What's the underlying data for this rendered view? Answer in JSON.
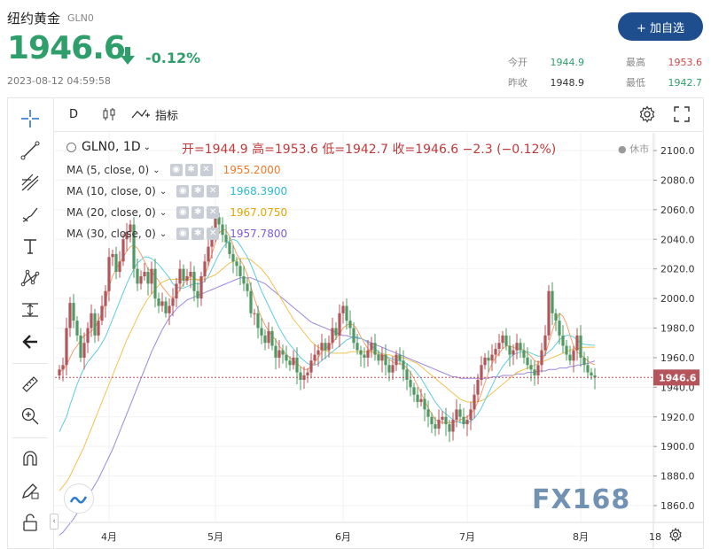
{
  "header": {
    "title": "纽约黄金",
    "code": "GLN0",
    "price": "1946.6",
    "change": "-0.12%",
    "timestamp": "2023-08-12 04:59:58",
    "add_button": "+ 加自选",
    "stats": [
      {
        "label": "今开",
        "value": "1944.9",
        "color": "#2e9e6b"
      },
      {
        "label": "最高",
        "value": "1953.6",
        "color": "#d04a4a"
      },
      {
        "label": "昨收",
        "value": "1948.9",
        "color": "#333333"
      },
      {
        "label": "最低",
        "value": "1942.7",
        "color": "#2e9e6b"
      }
    ]
  },
  "toolbar": {
    "interval": "D",
    "indicators": "指标"
  },
  "legend": {
    "symbol": "GLN0, 1D",
    "ohlc": "开=1944.9  高=1953.6  低=1942.7  收=1946.6  −2.3 (−0.12%)",
    "closed": "● 休市",
    "ma": [
      {
        "label": "MA (5, close, 0)",
        "value": "1955.2000",
        "color": "#f07a2a"
      },
      {
        "label": "MA (10, close, 0)",
        "value": "1968.3900",
        "color": "#2ebad3"
      },
      {
        "label": "MA (20, close, 0)",
        "value": "1967.0750",
        "color": "#f2c14e"
      },
      {
        "label": "MA (30, close, 0)",
        "value": "1957.7800",
        "color": "#7b5bd6"
      }
    ]
  },
  "watermark": "FX168",
  "chart_data": {
    "type": "candlestick",
    "ylim": [
      1850,
      2105
    ],
    "yticks": [
      1860,
      1880,
      1900,
      1920,
      1940,
      1960,
      1980,
      2000,
      2020,
      2040,
      2060,
      2080,
      2100
    ],
    "xticks": [
      {
        "label": "4月",
        "index": 14
      },
      {
        "label": "5月",
        "index": 44
      },
      {
        "label": "6月",
        "index": 80
      },
      {
        "label": "7月",
        "index": 115
      },
      {
        "label": "8月",
        "index": 147
      },
      {
        "label": "18",
        "index": 168
      }
    ],
    "last_price": 1946.6,
    "closes": [
      1952,
      1955,
      1980,
      1997,
      1985,
      1975,
      1960,
      1970,
      1980,
      1990,
      1975,
      1985,
      1995,
      2005,
      2028,
      2030,
      2018,
      2025,
      2040,
      2045,
      2050,
      2020,
      2010,
      2015,
      2018,
      2010,
      2020,
      2000,
      1995,
      1998,
      1990,
      1995,
      2000,
      2010,
      2020,
      2012,
      2015,
      2018,
      2005,
      2000,
      2015,
      2025,
      2035,
      2045,
      2055,
      2050,
      2043,
      2038,
      2030,
      2025,
      2022,
      2015,
      2010,
      2005,
      1990,
      1990,
      1980,
      1975,
      1970,
      1978,
      1968,
      1960,
      1965,
      1962,
      1958,
      1955,
      1960,
      1950,
      1945,
      1948,
      1950,
      1958,
      1962,
      1965,
      1970,
      1965,
      1970,
      1980,
      1975,
      1990,
      1995,
      1985,
      1980,
      1970,
      1965,
      1962,
      1960,
      1965,
      1970,
      1962,
      1958,
      1962,
      1955,
      1950,
      1955,
      1962,
      1958,
      1952,
      1945,
      1940,
      1935,
      1930,
      1932,
      1925,
      1920,
      1915,
      1912,
      1918,
      1920,
      1915,
      1910,
      1918,
      1925,
      1920,
      1915,
      1918,
      1925,
      1935,
      1945,
      1955,
      1960,
      1958,
      1962,
      1966,
      1970,
      1975,
      1968,
      1962,
      1965,
      1970,
      1965,
      1960,
      1955,
      1952,
      1948,
      1955,
      1965,
      1975,
      2005,
      1990,
      1985,
      1975,
      1968,
      1962,
      1958,
      1965,
      1975,
      1960,
      1955,
      1950,
      1948,
      1946.6
    ],
    "ma5": [
      1950,
      1952,
      1955,
      1960,
      1965,
      1968,
      1972,
      1975,
      1976,
      1978,
      1980,
      1985,
      1990,
      1998,
      2008,
      2015,
      2020,
      2024,
      2028,
      2032,
      2035,
      2036,
      2034,
      2030,
      2025,
      2020,
      2018,
      2015,
      2012,
      2008,
      2005,
      2002,
      2000,
      2002,
      2006,
      2010,
      2013,
      2015,
      2014,
      2012,
      2013,
      2016,
      2022,
      2030,
      2038,
      2044,
      2047,
      2046,
      2042,
      2036,
      2030,
      2026,
      2022,
      2016,
      2008,
      2000,
      1993,
      1987,
      1982,
      1978,
      1975,
      1972,
      1968,
      1965,
      1962,
      1960,
      1958,
      1956,
      1954,
      1952,
      1952,
      1954,
      1957,
      1960,
      1964,
      1966,
      1968,
      1970,
      1973,
      1976,
      1980,
      1982,
      1983,
      1982,
      1979,
      1974,
      1970,
      1966,
      1964,
      1963,
      1962,
      1962,
      1961,
      1959,
      1957,
      1956,
      1956,
      1955,
      1953,
      1950,
      1946,
      1941,
      1936,
      1931,
      1926,
      1922,
      1918,
      1917,
      1916,
      1916,
      1916,
      1916,
      1917,
      1918,
      1919,
      1920,
      1922,
      1925,
      1930,
      1936,
      1943,
      1950,
      1956,
      1960,
      1963,
      1966,
      1968,
      1968,
      1967,
      1966,
      1966,
      1965,
      1963,
      1961,
      1958,
      1957,
      1958,
      1962,
      1970,
      1978,
      1985,
      1990,
      1988,
      1983,
      1975,
      1968,
      1964,
      1962,
      1960,
      1958,
      1956,
      1955.2
    ],
    "ma10": [
      1910,
      1915,
      1920,
      1928,
      1935,
      1942,
      1948,
      1953,
      1957,
      1960,
      1963,
      1966,
      1970,
      1974,
      1980,
      1986,
      1992,
      1998,
      2004,
      2010,
      2015,
      2020,
      2024,
      2026,
      2028,
      2028,
      2027,
      2025,
      2023,
      2020,
      2017,
      2014,
      2010,
      2008,
      2007,
      2007,
      2008,
      2009,
      2010,
      2010,
      2010,
      2012,
      2015,
      2020,
      2025,
      2030,
      2034,
      2037,
      2039,
      2040,
      2039,
      2036,
      2032,
      2028,
      2023,
      2017,
      2011,
      2005,
      2000,
      1995,
      1990,
      1985,
      1980,
      1976,
      1972,
      1969,
      1966,
      1963,
      1960,
      1958,
      1956,
      1955,
      1955,
      1956,
      1958,
      1960,
      1962,
      1964,
      1966,
      1968,
      1970,
      1972,
      1973,
      1974,
      1974,
      1973,
      1972,
      1970,
      1968,
      1966,
      1964,
      1962,
      1961,
      1960,
      1959,
      1958,
      1958,
      1957,
      1956,
      1954,
      1952,
      1949,
      1946,
      1942,
      1938,
      1934,
      1930,
      1927,
      1924,
      1922,
      1920,
      1918,
      1917,
      1916,
      1916,
      1916,
      1917,
      1919,
      1922,
      1926,
      1931,
      1936,
      1941,
      1946,
      1950,
      1954,
      1957,
      1960,
      1962,
      1963,
      1964,
      1964,
      1964,
      1963,
      1962,
      1961,
      1961,
      1962,
      1964,
      1966,
      1969,
      1972,
      1974,
      1975,
      1975,
      1974,
      1972,
      1970,
      1969,
      1968.8,
      1968.5,
      1968.39
    ],
    "ma20": [
      1870,
      1873,
      1876,
      1880,
      1885,
      1890,
      1895,
      1900,
      1906,
      1912,
      1918,
      1924,
      1930,
      1936,
      1942,
      1948,
      1954,
      1960,
      1966,
      1972,
      1977,
      1982,
      1987,
      1992,
      1996,
      2000,
      2003,
      2006,
      2009,
      2011,
      2012,
      2013,
      2013,
      2013,
      2013,
      2013,
      2013,
      2013,
      2013,
      2013,
      2013,
      2013,
      2014,
      2015,
      2016,
      2018,
      2020,
      2022,
      2024,
      2025,
      2026,
      2027,
      2027,
      2027,
      2026,
      2024,
      2022,
      2020,
      2017,
      2014,
      2010,
      2006,
      2002,
      1998,
      1994,
      1990,
      1986,
      1983,
      1980,
      1977,
      1974,
      1971,
      1969,
      1967,
      1966,
      1965,
      1964,
      1963,
      1963,
      1963,
      1963,
      1963,
      1964,
      1964,
      1964,
      1964,
      1964,
      1964,
      1964,
      1964,
      1963,
      1963,
      1962,
      1962,
      1961,
      1961,
      1960,
      1960,
      1959,
      1958,
      1957,
      1956,
      1954,
      1952,
      1950,
      1948,
      1946,
      1944,
      1942,
      1940,
      1938,
      1936,
      1934,
      1932,
      1931,
      1930,
      1930,
      1930,
      1930,
      1931,
      1932,
      1934,
      1936,
      1938,
      1940,
      1942,
      1944,
      1946,
      1948,
      1950,
      1951,
      1952,
      1953,
      1954,
      1955,
      1956,
      1957,
      1958,
      1959,
      1960,
      1961,
      1962,
      1963,
      1964,
      1965,
      1966,
      1966,
      1966.5,
      1967,
      1967,
      1967.05,
      1967.075
    ],
    "ma30": [
      1840,
      1842,
      1845,
      1848,
      1851,
      1855,
      1858,
      1862,
      1866,
      1870,
      1874,
      1878,
      1883,
      1888,
      1893,
      1898,
      1904,
      1910,
      1916,
      1922,
      1928,
      1934,
      1940,
      1946,
      1952,
      1958,
      1964,
      1969,
      1974,
      1979,
      1983,
      1987,
      1990,
      1993,
      1995,
      1997,
      1999,
      2000,
      2001,
      2002,
      2003,
      2004,
      2005,
      2006,
      2007,
      2008,
      2009,
      2010,
      2011,
      2012,
      2013,
      2014,
      2014,
      2014,
      2014,
      2013,
      2012,
      2011,
      2010,
      2008,
      2006,
      2004,
      2002,
      2000,
      1998,
      1996,
      1994,
      1992,
      1990,
      1988,
      1986,
      1984,
      1983,
      1982,
      1981,
      1980,
      1979,
      1978,
      1977,
      1976,
      1975,
      1975,
      1974,
      1974,
      1973,
      1973,
      1972,
      1971,
      1970,
      1969,
      1968,
      1967,
      1966,
      1965,
      1964,
      1963,
      1962,
      1961,
      1960,
      1959,
      1958,
      1957,
      1956,
      1955,
      1954,
      1953,
      1952,
      1951,
      1950,
      1949,
      1948,
      1947,
      1947,
      1946,
      1946,
      1946,
      1946,
      1946,
      1946,
      1946,
      1946,
      1946,
      1947,
      1947,
      1947,
      1948,
      1948,
      1948,
      1948,
      1949,
      1949,
      1949,
      1950,
      1950,
      1950,
      1951,
      1951,
      1951,
      1952,
      1952,
      1952,
      1953,
      1953,
      1953,
      1954,
      1954,
      1955,
      1955,
      1956,
      1956,
      1957,
      1957.78
    ]
  }
}
